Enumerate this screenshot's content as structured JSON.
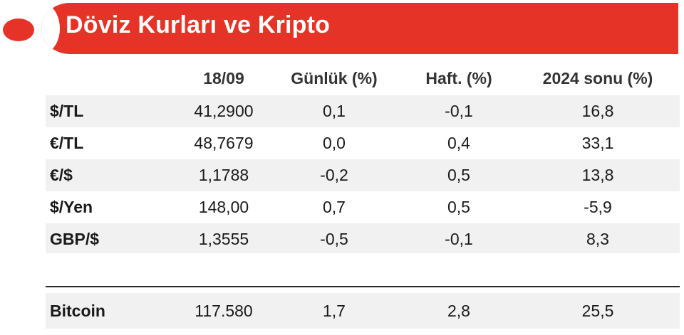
{
  "header": {
    "title": "Döviz Kurları ve Kripto"
  },
  "table": {
    "columns": [
      "",
      "18/09",
      "Günlük (%)",
      "Haft. (%)",
      "2024 sonu (%)"
    ],
    "rows": [
      {
        "label": "$/TL",
        "values": [
          "41,2900",
          "0,1",
          "-0,1",
          "16,8"
        ]
      },
      {
        "label": "€/TL",
        "values": [
          "48,7679",
          "0,0",
          "0,4",
          "33,1"
        ]
      },
      {
        "label": "€/$",
        "values": [
          "1,1788",
          "-0,2",
          "0,5",
          "13,8"
        ]
      },
      {
        "label": "$/Yen",
        "values": [
          "148,00",
          "0,7",
          "0,5",
          "-5,9"
        ]
      },
      {
        "label": "GBP/$",
        "values": [
          "1,3555",
          "-0,5",
          "-0,1",
          "8,3"
        ]
      }
    ],
    "crypto": {
      "label": "Bitcoin",
      "values": [
        "117.580",
        "1,7",
        "2,8",
        "25,5"
      ]
    }
  },
  "colors": {
    "accent": "#e53427",
    "row_shade": "#f1f1f1"
  }
}
